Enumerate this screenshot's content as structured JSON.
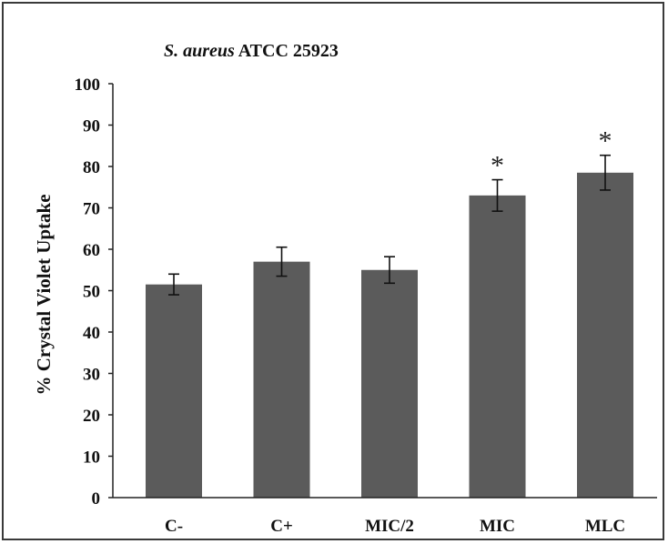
{
  "chart_data": {
    "type": "bar",
    "title_italic": "S. aureus",
    "title_rest": " ATCC 25923",
    "xlabel": "",
    "ylabel": "% Crystal Violet Uptake",
    "ylim": [
      0,
      100
    ],
    "yticks": [
      0,
      10,
      20,
      30,
      40,
      50,
      60,
      70,
      80,
      90,
      100
    ],
    "grid": false,
    "legend": "none",
    "categories": [
      "C-",
      "C+",
      "MIC/2",
      "MIC",
      "MLC"
    ],
    "values": [
      51.5,
      57,
      55,
      73,
      78.5
    ],
    "errors": [
      2.5,
      3.5,
      3.2,
      3.8,
      4.2
    ],
    "significance": [
      "",
      "",
      "",
      "*",
      "*"
    ],
    "colors": {
      "bar": "#5b5b5b",
      "error_bar": "#111111",
      "axis": "#222222"
    }
  }
}
